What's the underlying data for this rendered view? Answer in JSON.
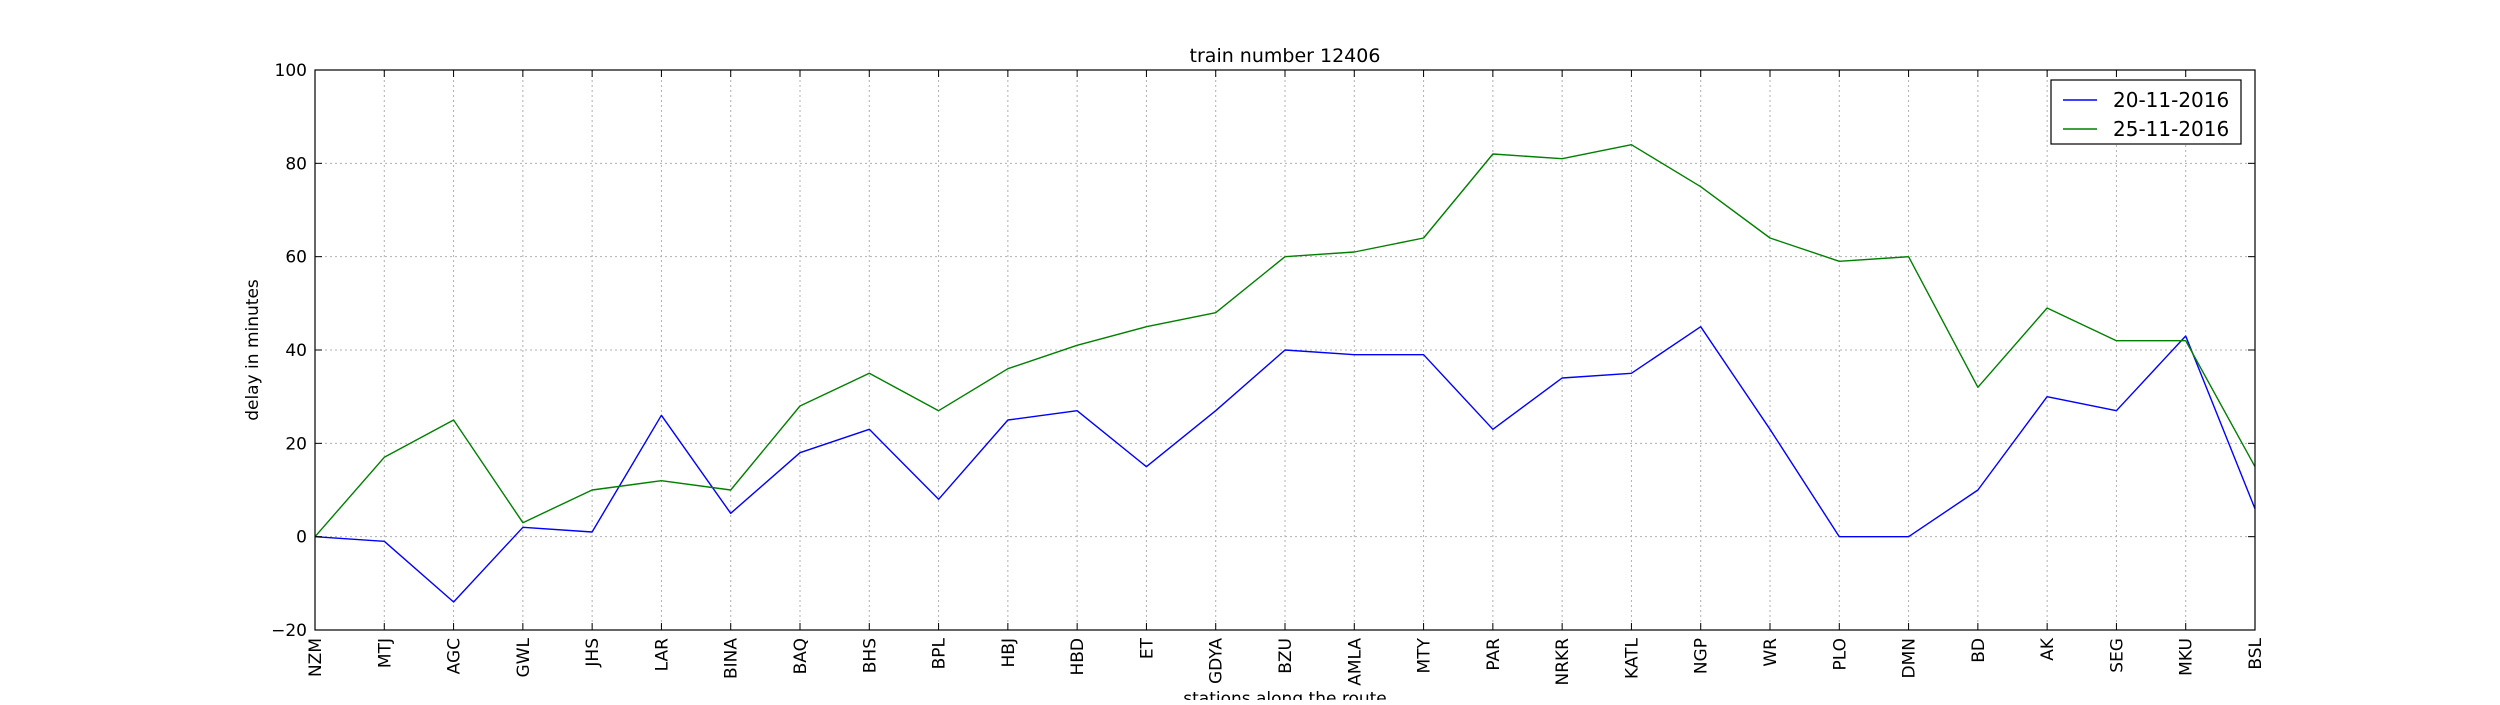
{
  "chart_data": {
    "type": "line",
    "title": "train number 12406",
    "xlabel": "stations along the route",
    "ylabel": "delay in minutes",
    "ylim": [
      -20,
      100
    ],
    "yticks": [
      -20,
      0,
      20,
      40,
      60,
      80,
      100
    ],
    "grid": true,
    "legend_position": "top-right",
    "categories": [
      "NZM",
      "MTJ",
      "AGC",
      "GWL",
      "JHS",
      "LAR",
      "BINA",
      "BAQ",
      "BHS",
      "BPL",
      "HBJ",
      "HBD",
      "ET",
      "GDYA",
      "BZU",
      "AMLA",
      "MTY",
      "PAR",
      "NRKR",
      "KATL",
      "NGP",
      "WR",
      "PLO",
      "DMN",
      "BD",
      "AK",
      "SEG",
      "MKU",
      "BSL"
    ],
    "series": [
      {
        "name": "20-11-2016",
        "color": "#0000ff",
        "values": [
          0,
          -1,
          -14,
          2,
          1,
          26,
          5,
          18,
          23,
          8,
          25,
          27,
          15,
          27,
          40,
          39,
          39,
          23,
          34,
          35,
          45,
          23,
          0,
          0,
          10,
          30,
          27,
          43,
          6
        ]
      },
      {
        "name": "25-11-2016",
        "color": "#008000",
        "values": [
          0,
          17,
          25,
          3,
          10,
          12,
          10,
          28,
          35,
          27,
          36,
          41,
          45,
          48,
          60,
          61,
          64,
          82,
          81,
          84,
          75,
          64,
          59,
          60,
          32,
          49,
          42,
          42,
          15
        ]
      }
    ]
  }
}
